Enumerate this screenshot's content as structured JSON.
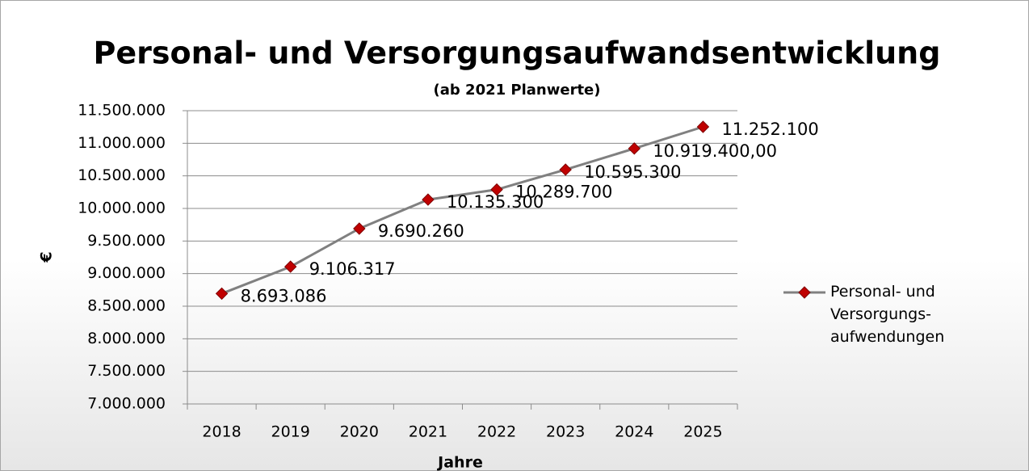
{
  "chart_data": {
    "type": "line",
    "title": "Personal- und Versorgungsaufwandsentwicklung",
    "subtitle": "(ab 2021 Planwerte)",
    "x_label": "Jahre",
    "y_label": "€",
    "categories": [
      "2018",
      "2019",
      "2020",
      "2021",
      "2022",
      "2023",
      "2024",
      "2025"
    ],
    "series": [
      {
        "name": "Personal- und Versorgungs-aufwendungen",
        "color": "#808080",
        "marker_color": "#c00000",
        "values": [
          8693086,
          9106317,
          9690260,
          10135300,
          10289700,
          10595300,
          10919400,
          11252100
        ],
        "value_labels": [
          "8.693.086",
          "9.106.317",
          "9.690.260",
          "10.135.300",
          "10.289.700",
          "10.595.300",
          "10.919.400,00",
          "11.252.100"
        ]
      }
    ],
    "ylim": [
      7000000,
      11500000
    ],
    "yticks": [
      {
        "value": 7000000,
        "label": "7.000.000"
      },
      {
        "value": 7500000,
        "label": "7.500.000"
      },
      {
        "value": 8000000,
        "label": "8.000.000"
      },
      {
        "value": 8500000,
        "label": "8.500.000"
      },
      {
        "value": 9000000,
        "label": "9.000.000"
      },
      {
        "value": 9500000,
        "label": "9.500.000"
      },
      {
        "value": 10000000,
        "label": "10.000.000"
      },
      {
        "value": 10500000,
        "label": "10.500.000"
      },
      {
        "value": 11000000,
        "label": "11.000.000"
      },
      {
        "value": 11500000,
        "label": "11.500.000"
      }
    ],
    "grid": true,
    "legend": "right"
  }
}
